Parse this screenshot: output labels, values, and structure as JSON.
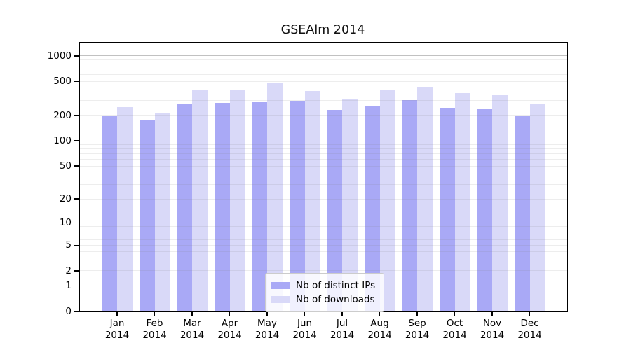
{
  "figure": {
    "background": "#ffffff"
  },
  "chart_data": {
    "type": "bar",
    "title": "GSEAlm 2014",
    "months": [
      "Jan",
      "Feb",
      "Mar",
      "Apr",
      "May",
      "Jun",
      "Jul",
      "Aug",
      "Sep",
      "Oct",
      "Nov",
      "Dec"
    ],
    "year": "2014",
    "series": [
      {
        "name": "Nb of distinct IPs",
        "color": "#a9a9f6",
        "values": [
          197,
          175,
          273,
          281,
          292,
          298,
          232,
          260,
          301,
          247,
          240,
          198
        ]
      },
      {
        "name": "Nb of downloads",
        "color": "#d9d9f8",
        "values": [
          252,
          210,
          392,
          392,
          484,
          389,
          315,
          393,
          430,
          367,
          345,
          277
        ]
      }
    ],
    "y_ticks": [
      0,
      1,
      2,
      5,
      10,
      20,
      50,
      100,
      200,
      500,
      1000
    ],
    "y_scale": "log10(1+x)",
    "ylim": [
      0,
      1429
    ],
    "xlabel": "",
    "ylabel": "",
    "grid": "horizontal, log major and minor lines",
    "legend_position": "lower center",
    "axis_color": "#000000",
    "grid_major_color": "rgba(100,100,100,0.40)",
    "grid_minor_color": "rgba(130,130,130,0.14)"
  }
}
